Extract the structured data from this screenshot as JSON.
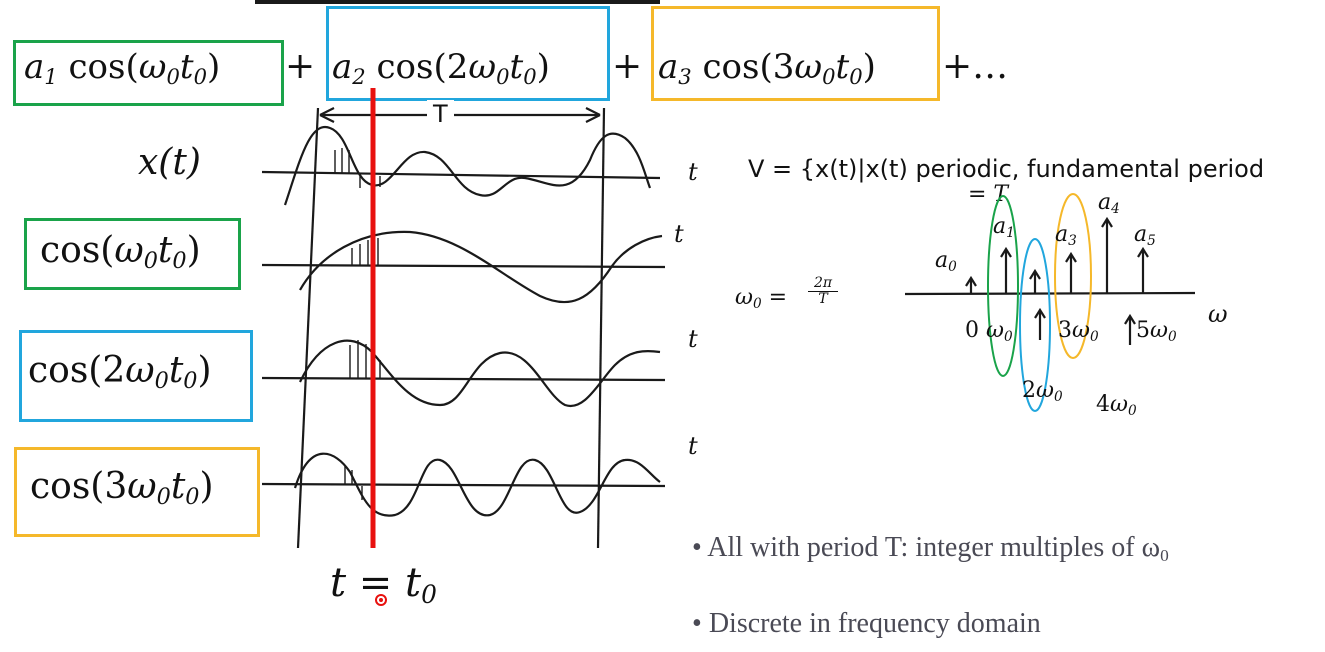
{
  "colors": {
    "green": "#1aa34a",
    "blue": "#21a6dd",
    "orange": "#f5b82a",
    "red": "#e8110f",
    "ink": "#1a1a1a"
  },
  "equation": {
    "terms": [
      {
        "coef": "a",
        "coef_sub": "1",
        "func": " cos(",
        "omega": "ω",
        "omega_sub": "0",
        "t": "t",
        "t_sub": "0",
        "close": ")",
        "mult": ""
      },
      {
        "coef": "a",
        "coef_sub": "2",
        "func": " cos(",
        "omega": "ω",
        "omega_sub": "0",
        "t": "t",
        "t_sub": "0",
        "close": ")",
        "mult": "2"
      },
      {
        "coef": "a",
        "coef_sub": "3",
        "func": " cos(",
        "omega": "ω",
        "omega_sub": "0",
        "t": "t",
        "t_sub": "0",
        "close": ")",
        "mult": "3"
      }
    ],
    "plus": "+",
    "tail": "+…"
  },
  "waves": {
    "period_label": "T",
    "rows": [
      {
        "label": "x(t)",
        "axis": "t"
      },
      {
        "label_main": "cos(",
        "omega": "ω",
        "mult": "",
        "axis": "t"
      },
      {
        "label_main": "cos(",
        "omega": "ω",
        "mult": "2",
        "axis": "t"
      },
      {
        "label_main": "cos(",
        "omega": "ω",
        "mult": "3",
        "axis": "t"
      }
    ],
    "marker": {
      "t": "t",
      "eq": "=",
      "t0": "t",
      "sub": "0"
    }
  },
  "vector_space": {
    "text": "V = {x(t)|x(t) periodic, fundamental period",
    "text2": "= T",
    "omega_def": "ω",
    "omega_sub": "0",
    "omega_eq": " = ",
    "frac_num": "2π",
    "frac_den": "T"
  },
  "spectrum": {
    "axis_label": "ω",
    "amp_labels": [
      "a",
      "a",
      "a",
      "a",
      "a"
    ],
    "amp_subs": [
      "0",
      "1",
      "3",
      "4",
      "5"
    ],
    "freq_labels": [
      {
        "pre": "0",
        "omega": "ω",
        "sub": "0"
      },
      {
        "pre": "2",
        "omega": "ω",
        "sub": "0"
      },
      {
        "pre": "3",
        "omega": "ω",
        "sub": "0"
      },
      {
        "pre": "4",
        "omega": "ω",
        "sub": "0"
      },
      {
        "pre": "5",
        "omega": "ω",
        "sub": "0"
      }
    ]
  },
  "bullets": [
    {
      "text": "All with period T: integer multiples of ω",
      "sub": "0"
    },
    {
      "text": "Discrete in frequency domain"
    }
  ]
}
